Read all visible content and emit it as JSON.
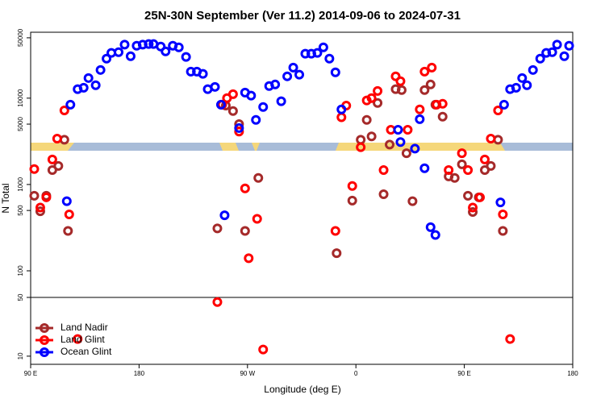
{
  "chart_data": {
    "type": "scatter",
    "title": "25N-30N September (Ver 11.2)   2014-09-06 to 2024-07-31",
    "x_label": "Longitude (deg E)",
    "y_label": "N Total",
    "xlim": [
      90,
      540
    ],
    "xticks": [
      {
        "value": 90,
        "label": "90 E"
      },
      {
        "value": 180,
        "label": "180"
      },
      {
        "value": 270,
        "label": "90 W"
      },
      {
        "value": 360,
        "label": "0"
      },
      {
        "value": 450,
        "label": "90 E"
      },
      {
        "value": 540,
        "label": "180"
      }
    ],
    "ylim": [
      8,
      58000
    ],
    "log_y": true,
    "axis_break": [
      50,
      100
    ],
    "yticks": [
      10,
      50,
      100,
      500,
      1000,
      5000,
      10000,
      50000
    ],
    "legend": "bottom-left",
    "series": [
      {
        "name": "Land Nadir",
        "color": "#a52a2a",
        "x": [
          93,
          98,
          103,
          108,
          113,
          118,
          121,
          245,
          252,
          258,
          263,
          268,
          279,
          344,
          357,
          364,
          369,
          373,
          378,
          383,
          388,
          393,
          398,
          402,
          407,
          417,
          422,
          426,
          432,
          437,
          442,
          448,
          453,
          457,
          462,
          467,
          472,
          478,
          482
        ],
        "values": [
          740,
          490,
          740,
          1470,
          1640,
          3300,
          290,
          310,
          8200,
          7100,
          5000,
          290,
          1190,
          160,
          650,
          3300,
          5600,
          3600,
          8800,
          770,
          2900,
          12700,
          12400,
          2300,
          640,
          12400,
          14400,
          8400,
          6100,
          1240,
          1190,
          1710,
          740,
          480,
          710,
          1470,
          1640,
          3300,
          290
        ]
      },
      {
        "name": "Land Glint",
        "color": "#ff0000",
        "x": [
          93,
          98,
          103,
          108,
          112,
          118,
          122,
          129,
          245,
          249,
          253,
          258,
          263,
          268,
          271,
          278,
          283,
          343,
          348,
          352,
          357,
          364,
          369,
          373,
          378,
          383,
          389,
          393,
          397,
          403,
          413,
          417,
          423,
          427,
          432,
          437,
          448,
          453,
          457,
          463,
          467,
          472,
          478,
          482,
          488
        ],
        "values": [
          1510,
          540,
          710,
          1950,
          3400,
          7200,
          450,
          16,
          44,
          8400,
          10000,
          11100,
          4100,
          900,
          140,
          400,
          12,
          290,
          6000,
          8200,
          960,
          2700,
          9400,
          10000,
          12100,
          1470,
          4300,
          17900,
          15700,
          4300,
          7400,
          20300,
          22600,
          8400,
          8600,
          1470,
          2300,
          1470,
          540,
          710,
          1950,
          3400,
          7200,
          450,
          16
        ]
      },
      {
        "name": "Ocean Glint",
        "color": "#0000ff",
        "x": [
          120,
          123,
          129,
          134,
          138,
          144,
          148,
          153,
          157,
          163,
          168,
          173,
          178,
          183,
          188,
          192,
          198,
          202,
          208,
          213,
          219,
          223,
          228,
          233,
          237,
          243,
          248,
          251,
          263,
          268,
          273,
          277,
          283,
          288,
          293,
          298,
          303,
          308,
          313,
          318,
          323,
          328,
          333,
          338,
          343,
          348,
          395,
          397,
          409,
          413,
          417,
          422,
          426,
          480,
          483,
          488,
          493,
          498,
          502,
          507,
          513,
          518,
          523,
          527,
          533,
          537
        ],
        "values": [
          640,
          8400,
          12700,
          13200,
          17100,
          14100,
          21200,
          28700,
          33400,
          34100,
          41700,
          30600,
          40500,
          41700,
          42300,
          42300,
          39600,
          34800,
          40500,
          38800,
          30000,
          20300,
          20300,
          19100,
          12700,
          13500,
          8400,
          440,
          4500,
          11600,
          10700,
          5600,
          7900,
          13800,
          14400,
          9200,
          17900,
          22600,
          18700,
          32700,
          32700,
          33400,
          38800,
          28700,
          19900,
          7400,
          4300,
          3100,
          2600,
          5700,
          1540,
          320,
          260,
          620,
          8400,
          12700,
          13200,
          17100,
          14100,
          21200,
          28700,
          33400,
          34100,
          41700,
          30600,
          40500
        ]
      }
    ]
  }
}
